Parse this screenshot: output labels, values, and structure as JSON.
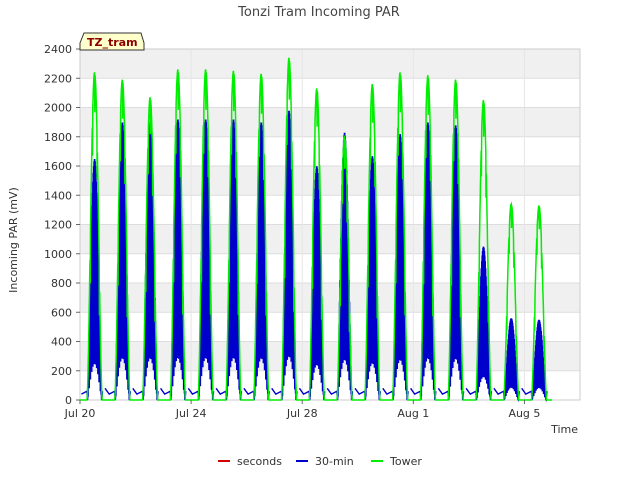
{
  "chart_data": {
    "type": "line",
    "title": "Tonzi Tram Incoming PAR",
    "xlabel": "Time",
    "ylabel": "Incoming PAR (mV)",
    "site_tag": "TZ_tram",
    "ylim": [
      0,
      2400
    ],
    "yticks": [
      0,
      200,
      400,
      600,
      800,
      1000,
      1200,
      1400,
      1600,
      1800,
      2000,
      2200,
      2400
    ],
    "xlim": [
      "2023-07-20",
      "2023-08-07"
    ],
    "xticks": [
      {
        "date": "2023-07-20",
        "label": "Jul 20"
      },
      {
        "date": "2023-07-24",
        "label": "Jul 24"
      },
      {
        "date": "2023-07-28",
        "label": "Jul 28"
      },
      {
        "date": "2023-08-01",
        "label": "Aug 1"
      },
      {
        "date": "2023-08-05",
        "label": "Aug 5"
      }
    ],
    "grid": true,
    "legend_position": "bottom",
    "background_bands": true,
    "series": [
      {
        "name": "seconds",
        "color": "#cc0000",
        "daily_peaks": []
      },
      {
        "name": "30-min",
        "color": "#0000cc",
        "daily_peaks": [
          {
            "date": "2023-07-20",
            "peak": 1650
          },
          {
            "date": "2023-07-21",
            "peak": 1900
          },
          {
            "date": "2023-07-22",
            "peak": 1900
          },
          {
            "date": "2023-07-23",
            "peak": 1920
          },
          {
            "date": "2023-07-24",
            "peak": 1920
          },
          {
            "date": "2023-07-25",
            "peak": 1920
          },
          {
            "date": "2023-07-26",
            "peak": 1900
          },
          {
            "date": "2023-07-27",
            "peak": 1980
          },
          {
            "date": "2023-07-28",
            "peak": 1600
          },
          {
            "date": "2023-07-29",
            "peak": 1830
          },
          {
            "date": "2023-07-30",
            "peak": 1670
          },
          {
            "date": "2023-07-31",
            "peak": 1820
          },
          {
            "date": "2023-08-01",
            "peak": 1900
          },
          {
            "date": "2023-08-02",
            "peak": 1880
          },
          {
            "date": "2023-08-03",
            "peak": 1050
          },
          {
            "date": "2023-08-04",
            "peak": 560
          },
          {
            "date": "2023-08-05",
            "peak": 550
          }
        ]
      },
      {
        "name": "Tower",
        "color": "#00ee00",
        "daily_peaks": [
          {
            "date": "2023-07-20",
            "peak": 2240
          },
          {
            "date": "2023-07-21",
            "peak": 2190
          },
          {
            "date": "2023-07-22",
            "peak": 2070
          },
          {
            "date": "2023-07-23",
            "peak": 2260
          },
          {
            "date": "2023-07-24",
            "peak": 2260
          },
          {
            "date": "2023-07-25",
            "peak": 2250
          },
          {
            "date": "2023-07-26",
            "peak": 2230
          },
          {
            "date": "2023-07-27",
            "peak": 2340
          },
          {
            "date": "2023-07-28",
            "peak": 2130
          },
          {
            "date": "2023-07-29",
            "peak": 1800
          },
          {
            "date": "2023-07-30",
            "peak": 2160
          },
          {
            "date": "2023-07-31",
            "peak": 2240
          },
          {
            "date": "2023-08-01",
            "peak": 2220
          },
          {
            "date": "2023-08-02",
            "peak": 2190
          },
          {
            "date": "2023-08-03",
            "peak": 2050
          },
          {
            "date": "2023-08-04",
            "peak": 1340
          },
          {
            "date": "2023-08-05",
            "peak": 1330
          }
        ]
      }
    ]
  },
  "legend": [
    {
      "label": "seconds",
      "color": "#cc0000"
    },
    {
      "label": "30-min",
      "color": "#0000cc"
    },
    {
      "label": "Tower",
      "color": "#00ee00"
    }
  ]
}
